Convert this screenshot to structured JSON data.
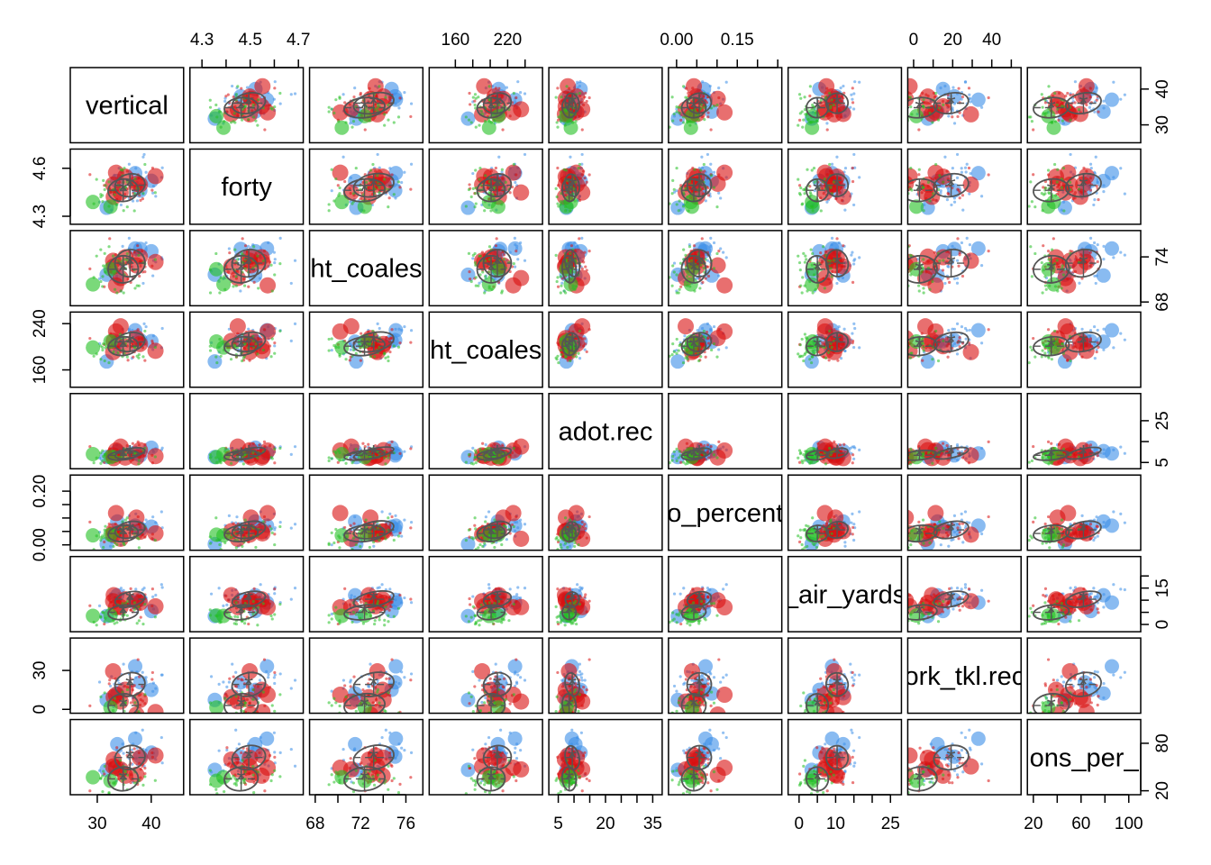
{
  "chart_data": {
    "type": "scatter",
    "title": "",
    "variables": [
      {
        "name": "vertical",
        "range": [
          25,
          46
        ],
        "ticks": [
          "30",
          "40"
        ],
        "tick_values": [
          30,
          40
        ],
        "tick_side": [
          "bottom",
          "right"
        ],
        "center": 35.5,
        "sd": 2.8
      },
      {
        "name": "forty",
        "range": [
          4.25,
          4.72
        ],
        "ticks": [
          "4.3",
          "4.5",
          "4.7"
        ],
        "tick_values": [
          4.3,
          4.5,
          4.7
        ],
        "minor_ticks": [
          4.4,
          4.6
        ],
        "side_ticks": [
          "4.3",
          "4.6"
        ],
        "side_tick_values": [
          4.3,
          4.6
        ],
        "tick_side": [
          "top",
          "left"
        ],
        "center": 4.48,
        "sd": 0.07
      },
      {
        "name": "height_coalesced",
        "display": "ht_coales",
        "range": [
          67.5,
          77.5
        ],
        "ticks": [
          "68",
          "72",
          "76"
        ],
        "tick_values": [
          68,
          72,
          76
        ],
        "minor_ticks": [
          70,
          74
        ],
        "side_ticks": [
          "68",
          "74"
        ],
        "side_tick_values": [
          68,
          74
        ],
        "tick_side": [
          "bottom",
          "right"
        ],
        "center": 72.8,
        "sd": 1.8
      },
      {
        "name": "weight_coalesced",
        "display": "ht_coales",
        "range": [
          130,
          260
        ],
        "ticks": [
          "160",
          "220"
        ],
        "tick_values": [
          160,
          220
        ],
        "minor_ticks": [
          180,
          200,
          240
        ],
        "side_ticks": [
          "160",
          "240"
        ],
        "side_tick_values": [
          160,
          240
        ],
        "tick_side": [
          "top",
          "left"
        ],
        "center": 205,
        "sd": 16
      },
      {
        "name": "adot.rec",
        "range": [
          2,
          38
        ],
        "ticks": [
          "5",
          "20",
          "35"
        ],
        "tick_values": [
          5,
          20,
          35
        ],
        "minor_ticks": [
          10,
          15,
          25,
          30
        ],
        "side_ticks": [
          "5",
          "25"
        ],
        "side_tick_values": [
          5,
          25
        ],
        "side_minor_ticks": [
          15
        ],
        "tick_side": [
          "bottom",
          "right"
        ],
        "center": 9,
        "sd": 2.2
      },
      {
        "name": "drop_percent",
        "display": "o_percent",
        "range": [
          -0.02,
          0.26
        ],
        "ticks": [
          "0.00",
          "0.15"
        ],
        "tick_values": [
          0,
          0.15
        ],
        "minor_ticks": [
          0.05,
          0.1,
          0.2,
          0.25
        ],
        "side_ticks": [
          "0.00",
          "0.20"
        ],
        "side_tick_values": [
          0,
          0.2
        ],
        "side_minor_ticks": [
          0.05,
          0.1,
          0.15
        ],
        "tick_side": [
          "top",
          "left"
        ],
        "center": 0.05,
        "sd": 0.03
      },
      {
        "name": "avg_air_yards",
        "display": "_air_yards",
        "range": [
          -3,
          28
        ],
        "ticks": [
          "0",
          "10",
          "25"
        ],
        "tick_values": [
          0,
          10,
          25
        ],
        "minor_ticks": [
          5,
          15,
          20
        ],
        "side_ticks": [
          "0",
          "15"
        ],
        "side_tick_values": [
          0,
          15
        ],
        "side_minor_ticks": [
          5,
          10,
          20
        ],
        "tick_side": [
          "bottom",
          "right"
        ],
        "center": 8,
        "sd": 3
      },
      {
        "name": "work_tkl.rec",
        "display": "ork_tkl.rec",
        "range": [
          -3,
          55
        ],
        "ticks": [
          "0",
          "20",
          "40"
        ],
        "tick_values": [
          0,
          20,
          40
        ],
        "minor_ticks": [
          10,
          30,
          50
        ],
        "side_ticks": [
          "0",
          "30"
        ],
        "side_tick_values": [
          0,
          30
        ],
        "tick_side": [
          "top",
          "left"
        ],
        "center": 12,
        "sd": 9
      },
      {
        "name": "receptions_per_",
        "display": "ons_per_",
        "range": [
          15,
          110
        ],
        "ticks": [
          "20",
          "60",
          "100"
        ],
        "tick_values": [
          20,
          60,
          100
        ],
        "minor_ticks": [
          40,
          80
        ],
        "side_ticks": [
          "20",
          "80"
        ],
        "side_tick_values": [
          20,
          80
        ],
        "tick_side": [
          "bottom",
          "right"
        ],
        "center": 50,
        "sd": 15
      }
    ],
    "groups": [
      {
        "color": "#3b8ee8",
        "size": 8,
        "shift": 0.8,
        "n": 5
      },
      {
        "color": "#d90f0f",
        "size": 9,
        "shift": 0.0,
        "n": 8
      },
      {
        "color": "#22c022",
        "size": 8,
        "shift": -1.6,
        "n": 2
      }
    ],
    "grid": false,
    "legend": "none"
  }
}
